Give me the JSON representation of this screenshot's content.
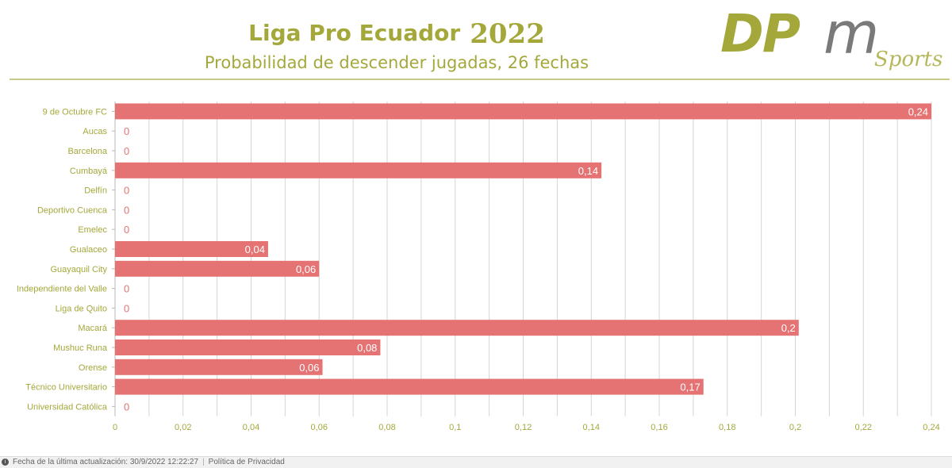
{
  "header": {
    "title": "Liga Pro Ecuador",
    "year": "2022",
    "subtitle": "Probabilidad de descender jugadas, 26 fechas"
  },
  "logo": {
    "letters_dp": "DP",
    "letter_m": "m",
    "word": "Sports"
  },
  "footer": {
    "last_update": "Fecha de la última actualización: 30/9/2022 12:22:27",
    "privacy": "Política de Privacidad"
  },
  "colors": {
    "bar": "#e57373",
    "accent": "#a4a83a",
    "grid": "#d4d4d4"
  },
  "chart_data": {
    "type": "bar",
    "orientation": "horizontal",
    "categories": [
      "9 de Octubre FC",
      "Aucas",
      "Barcelona",
      "Cumbayá",
      "Delfín",
      "Deportivo Cuenca",
      "Emelec",
      "Gualaceo",
      "Guayaquil City",
      "Independiente del Valle",
      "Liga de Quito",
      "Macará",
      "Mushuc Runa",
      "Orense",
      "Técnico Universitario",
      "Universidad Católica"
    ],
    "values": [
      0.24,
      0,
      0,
      0.143,
      0,
      0,
      0,
      0.045,
      0.06,
      0,
      0,
      0.201,
      0.078,
      0.061,
      0.173,
      0
    ],
    "value_labels": [
      "0,24",
      "0",
      "0",
      "0,14",
      "0",
      "0",
      "0",
      "0,04",
      "0,06",
      "0",
      "0",
      "0,2",
      "0,08",
      "0,06",
      "0,17",
      "0"
    ],
    "xticks": [
      "0",
      "0,02",
      "0,04",
      "0,06",
      "0,08",
      "0,1",
      "0,12",
      "0,14",
      "0,16",
      "0,18",
      "0,2",
      "0,22",
      "0,24"
    ],
    "xlim": [
      0,
      0.24
    ],
    "grid": true,
    "legend": "none"
  }
}
